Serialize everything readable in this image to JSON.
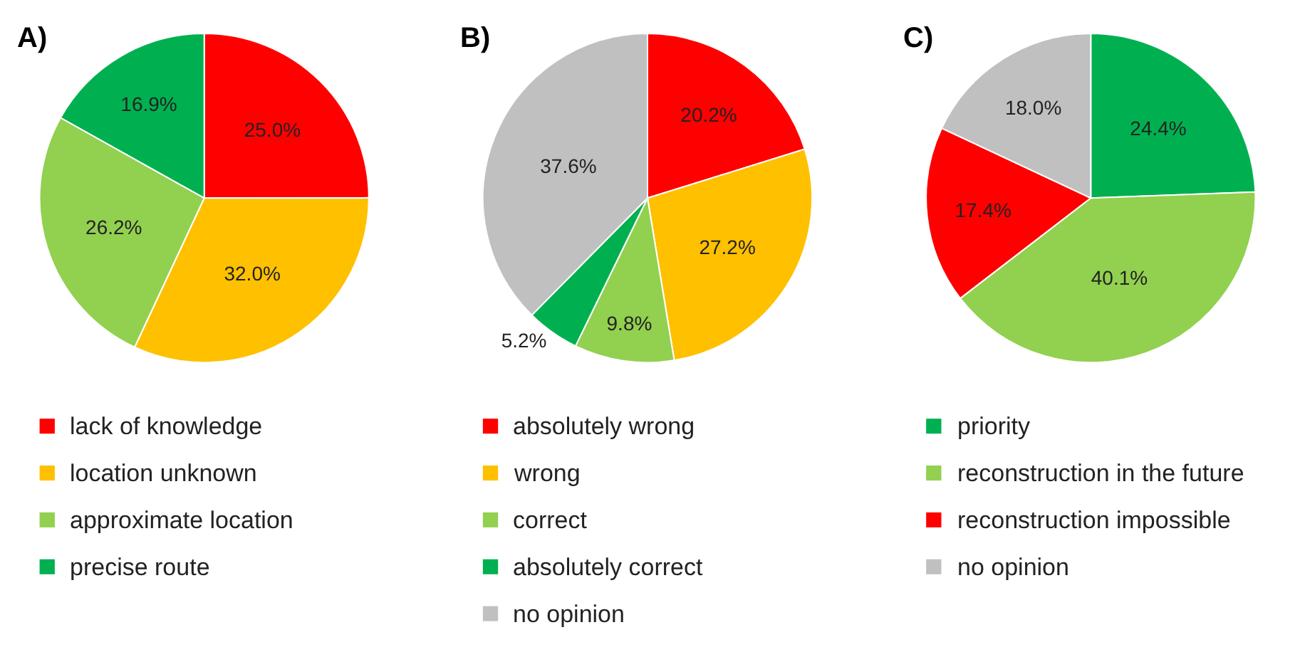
{
  "chart_data": [
    {
      "type": "pie",
      "title": "A)",
      "categories": [
        "lack of knowledge",
        "location unknown",
        "approximate location",
        "precise route"
      ],
      "values": [
        25.0,
        32.0,
        26.2,
        16.9
      ],
      "colors": [
        "#ff0000",
        "#ffc000",
        "#92d050",
        "#00b050"
      ],
      "value_labels": [
        "25.0%",
        "32.0%",
        "26.2%",
        "16.9%"
      ],
      "legend": "bottom"
    },
    {
      "type": "pie",
      "title": "B)",
      "categories": [
        "absolutely wrong",
        "wrong",
        "correct",
        "absolutely correct",
        "no opinion"
      ],
      "values": [
        20.2,
        27.2,
        9.8,
        5.2,
        37.6
      ],
      "colors": [
        "#ff0000",
        "#ffc000",
        "#92d050",
        "#00b050",
        "#c0c0c0"
      ],
      "value_labels": [
        "20.2%",
        "27.2%",
        "9.8%",
        "5.2%",
        "37.6%"
      ],
      "legend": "bottom"
    },
    {
      "type": "pie",
      "title": "C)",
      "categories": [
        "priority",
        "reconstruction in the future",
        "reconstruction impossible",
        "no opinion"
      ],
      "values": [
        24.4,
        40.1,
        17.4,
        18.0
      ],
      "colors": [
        "#00b050",
        "#92d050",
        "#ff0000",
        "#c0c0c0"
      ],
      "value_labels": [
        "24.4%",
        "40.1%",
        "17.4%",
        "18.0%"
      ],
      "legend": "bottom"
    }
  ]
}
